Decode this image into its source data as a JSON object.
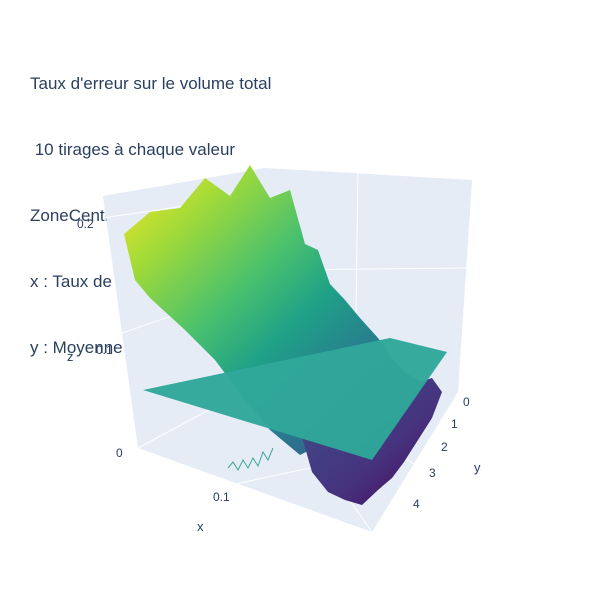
{
  "chart_data": {
    "type": "surface3d",
    "title_lines": [
      "Taux d'erreur sur le volume total",
      " 10 tirages à chaque valeur",
      "ZoneCentre",
      "x : Taux de suppression",
      "y : Moyenne Mu"
    ],
    "xlabel": "x",
    "ylabel": "y",
    "zlabel": "z",
    "x_range": [
      0,
      0.2
    ],
    "y_range": [
      0,
      5
    ],
    "z_range": [
      0,
      0.22
    ],
    "x_ticks": [
      "0.1"
    ],
    "y_ticks": [
      "0",
      "1",
      "2",
      "3",
      "4"
    ],
    "z_ticks": [
      "0",
      "0.1",
      "0.2"
    ],
    "colorscale": "viridis",
    "colors": {
      "background": "#e5ecf6",
      "grid": "#ffffff",
      "text": "#2a3f5f",
      "plane": "#2fa79a"
    },
    "series": [
      {
        "name": "",
        "description_values": {
          "z_at_x0": 0.215,
          "z_at_xmax": 0.04
        }
      },
      {
        "name": "",
        "plane_z": 0.055
      }
    ]
  }
}
